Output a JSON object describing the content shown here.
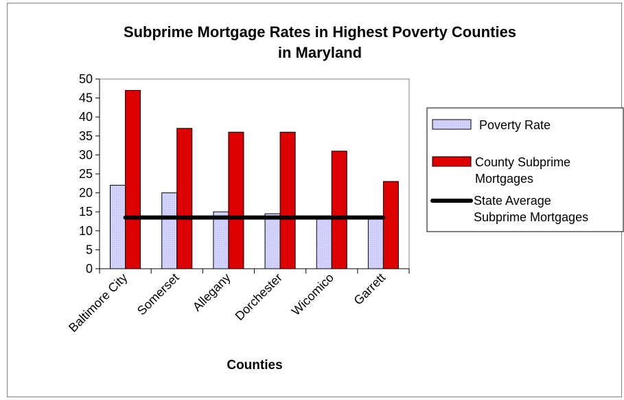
{
  "chart_data": {
    "type": "bar",
    "title_lines": [
      "Subprime Mortgage Rates in Highest Poverty Counties",
      "in Maryland"
    ],
    "xlabel": "Counties",
    "ylabel": "",
    "ylim": [
      0,
      50
    ],
    "yticks": [
      0,
      5,
      10,
      15,
      20,
      25,
      30,
      35,
      40,
      45,
      50
    ],
    "grid": false,
    "legend_position": "right",
    "categories": [
      "Baltimore City",
      "Somerset",
      "Allegany",
      "Dorchester",
      "Wicomico",
      "Garrett"
    ],
    "series": [
      {
        "name": "Poverty Rate",
        "type": "bar",
        "color": "#ccccff",
        "values": [
          22,
          20,
          15,
          14.5,
          13.5,
          13.5
        ]
      },
      {
        "name": "County Subprime Mortgages",
        "legend_lines": [
          "County Subprime",
          "Mortgages"
        ],
        "type": "bar",
        "color": "#dd0000",
        "values": [
          47,
          37,
          36,
          36,
          31,
          23
        ]
      },
      {
        "name": "State Average Subprime Mortgages",
        "legend_lines": [
          "State Average",
          "Subprime Mortgages"
        ],
        "type": "line",
        "color": "#000000",
        "value": 13.5
      }
    ]
  }
}
